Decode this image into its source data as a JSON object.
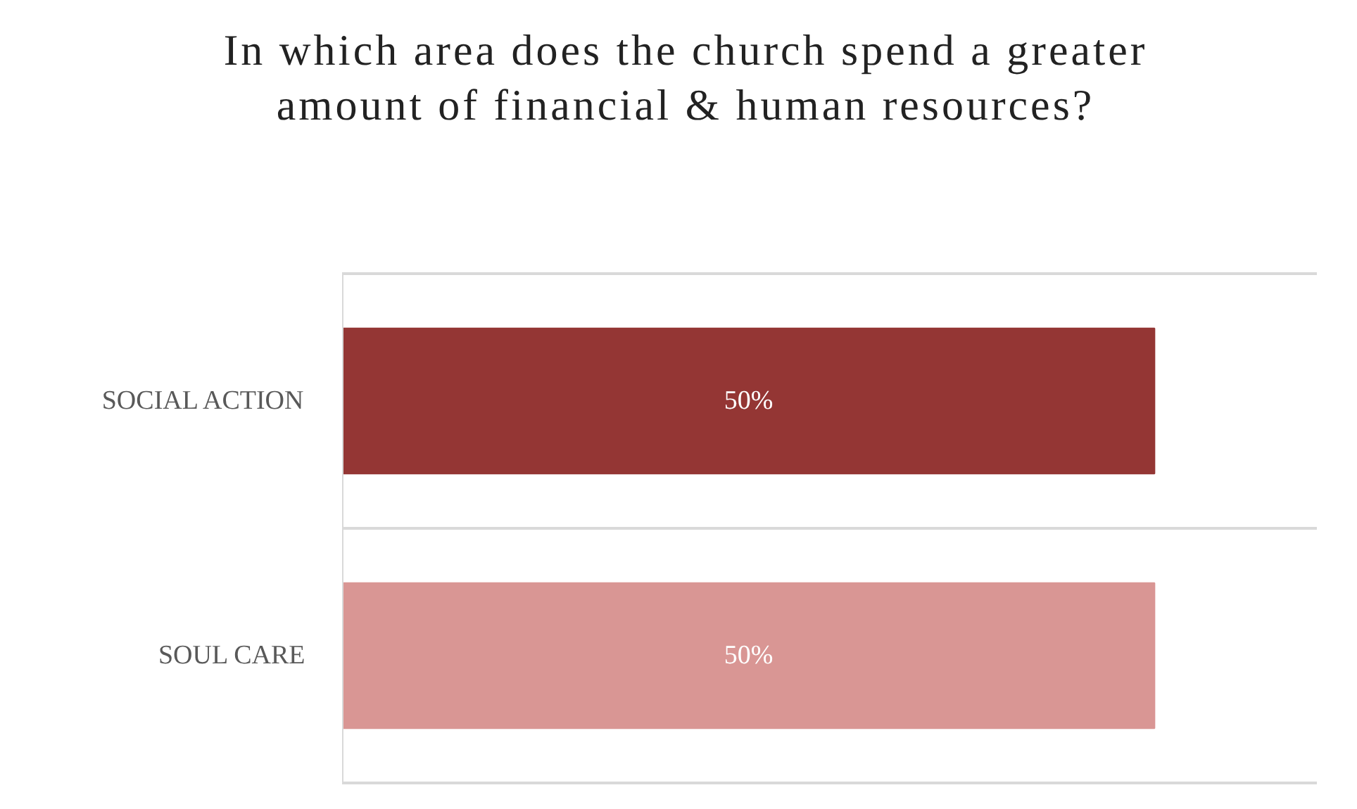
{
  "chart_data": {
    "type": "bar",
    "orientation": "horizontal",
    "title": "In which area does the church spend a greater amount of financial & human resources?",
    "categories": [
      "SOCIAL ACTION",
      "SOUL CARE"
    ],
    "values": [
      50,
      50
    ],
    "colors": [
      "#943634",
      "#d99694"
    ],
    "value_labels": [
      "50%",
      "50%"
    ],
    "grid": "y",
    "tick_labels": "y"
  }
}
